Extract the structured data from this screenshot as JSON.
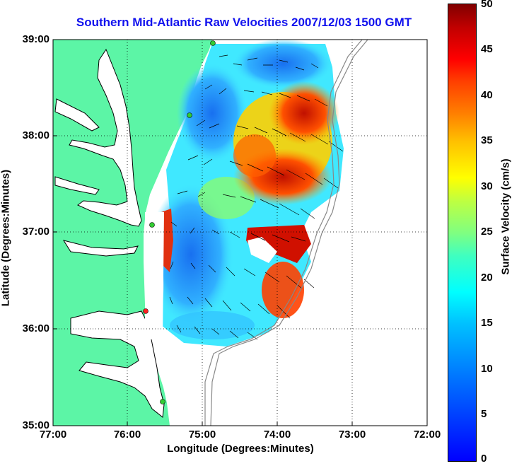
{
  "title": "Southern Mid-Atlantic Raw Velocities 2007/12/03 1500 GMT",
  "axes": {
    "x_label": "Longitude (Degrees:Minutes)",
    "y_label": "Latitude (Degrees:Minutes)",
    "x_ticks": [
      "77:00",
      "76:00",
      "75:00",
      "74:00",
      "73:00",
      "72:00"
    ],
    "y_ticks": [
      "39:00",
      "38:00",
      "37:00",
      "36:00",
      "35:00"
    ],
    "grid": "dotted"
  },
  "colorbar": {
    "label": "Surface Velocity (cm/s)",
    "ticks": [
      "50",
      "45",
      "40",
      "35",
      "30",
      "25",
      "20",
      "15",
      "10",
      "5",
      "0"
    ],
    "range": [
      0,
      50
    ],
    "colormap": "jet"
  },
  "colors": {
    "land": "#5cf5a6",
    "ocean": "#ffffff",
    "title": "#1111ee",
    "station_green": "#33cc33",
    "station_red": "#ff2222",
    "bathymetry": "#888888"
  }
}
